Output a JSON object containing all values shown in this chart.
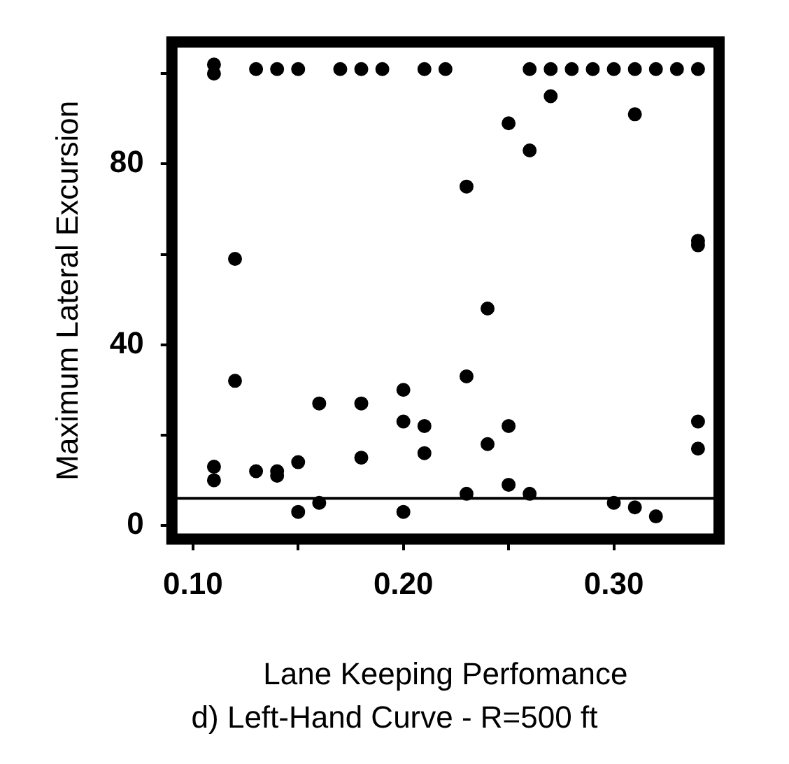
{
  "chart_data": {
    "type": "scatter",
    "xlabel": "Lane Keeping Perfomance",
    "ylabel": "Maximum Lateral Excursion",
    "annotations": [
      "d) Left-Hand Curve - R=500 ft"
    ],
    "x": [
      0.11,
      0.11,
      0.11,
      0.11,
      0.12,
      0.12,
      0.13,
      0.13,
      0.14,
      0.14,
      0.14,
      0.15,
      0.15,
      0.15,
      0.16,
      0.16,
      0.17,
      0.18,
      0.18,
      0.18,
      0.19,
      0.2,
      0.2,
      0.2,
      0.21,
      0.21,
      0.21,
      0.22,
      0.23,
      0.23,
      0.23,
      0.24,
      0.24,
      0.25,
      0.25,
      0.25,
      0.26,
      0.26,
      0.26,
      0.27,
      0.27,
      0.28,
      0.29,
      0.3,
      0.3,
      0.31,
      0.31,
      0.31,
      0.32,
      0.32,
      0.33,
      0.34,
      0.34,
      0.34,
      0.34,
      0.34
    ],
    "values": [
      100,
      102,
      13,
      10,
      59,
      32,
      101,
      12,
      101,
      12,
      11,
      101,
      14,
      3,
      27,
      5,
      101,
      101,
      27,
      15,
      101,
      30,
      23,
      3,
      101,
      22,
      16,
      101,
      75,
      33,
      7,
      48,
      18,
      89,
      22,
      9,
      83,
      101,
      7,
      95,
      101,
      101,
      101,
      101,
      5,
      91,
      101,
      4,
      101,
      2,
      101,
      101,
      63,
      62,
      23,
      17
    ],
    "color": "#000000",
    "marker": "circle",
    "ref_lines": [
      {
        "axis": "y",
        "value": 6,
        "color": "#000000"
      }
    ],
    "xlim": [
      0.09,
      0.35
    ],
    "xticks": [
      {
        "value": 0.1,
        "label": "0.10"
      },
      {
        "value": 0.15,
        "label": null
      },
      {
        "value": 0.2,
        "label": "0.20"
      },
      {
        "value": 0.25,
        "label": null
      },
      {
        "value": 0.3,
        "label": "0.30"
      }
    ],
    "ylim": [
      -3,
      107
    ],
    "yticks": [
      0,
      {
        "value": 20,
        "label": null
      },
      40,
      {
        "value": 60,
        "label": null
      },
      80,
      {
        "value": 100,
        "label": null
      }
    ],
    "grid": false,
    "legend": false
  }
}
